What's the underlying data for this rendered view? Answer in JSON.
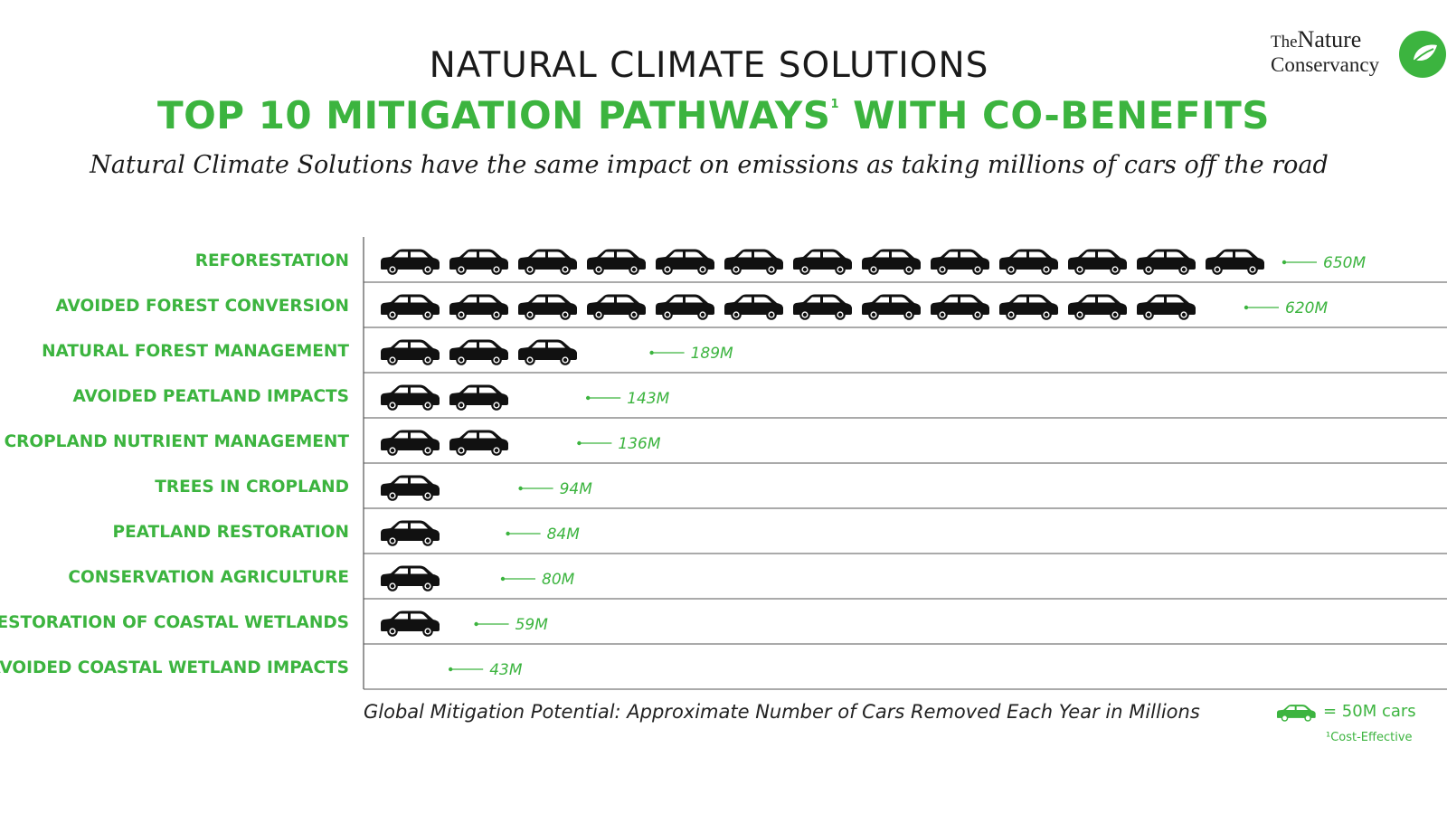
{
  "header": {
    "title": "NATURAL CLIMATE SOLUTIONS",
    "title2_main": "TOP 10 MITIGATION PATHWAYS",
    "title2_sup": "1",
    "title2_end": " WITH CO-BENEFITS",
    "subtitle": "Natural Climate Solutions have the same impact on emissions as taking millions of cars off the road"
  },
  "logo": {
    "the": "The",
    "nature": "Nature",
    "conservancy": "Conservancy"
  },
  "colors": {
    "green": "#3cb43f",
    "car": "#111111",
    "gridline": "#555555"
  },
  "chart_data": {
    "type": "bar",
    "unit_per_icon": 50,
    "categories": [
      "REFORESTATION",
      "AVOIDED FOREST CONVERSION",
      "NATURAL FOREST MANAGEMENT",
      "AVOIDED PEATLAND IMPACTS",
      "CROPLAND NUTRIENT MANAGEMENT",
      "TREES IN CROPLAND",
      "PEATLAND RESTORATION",
      "CONSERVATION AGRICULTURE",
      "RESTORATION OF COASTAL WETLANDS",
      "AVOIDED COASTAL WETLAND IMPACTS"
    ],
    "values": [
      650,
      620,
      189,
      143,
      136,
      94,
      84,
      80,
      59,
      43
    ],
    "value_labels": [
      "650M",
      "620M",
      "189M",
      "143M",
      "136M",
      "94M",
      "84M",
      "80M",
      "59M",
      "43M"
    ],
    "xlabel_bold": "Global Mitigation Potential:",
    "xlabel_rest": " Approximate Number of Cars Removed Each Year in Millions",
    "legend_label": "= 50M cars",
    "footnote": "¹Cost-Effective"
  }
}
